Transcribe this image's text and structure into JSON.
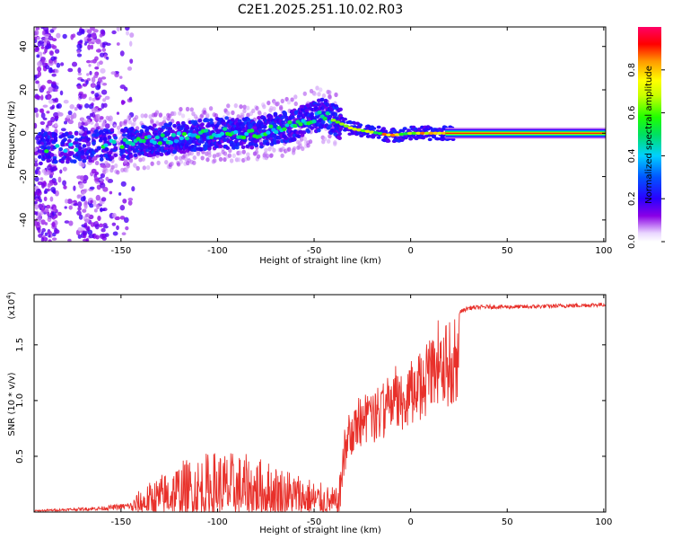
{
  "title": "C2E1.2025.251.10.02.R03",
  "chart_data": [
    {
      "type": "heatmap",
      "name": "spectrogram",
      "xlabel": "Height of straight line (km)",
      "ylabel": "Frequency (Hz)",
      "xlim": [
        -195,
        101
      ],
      "ylim": [
        -50,
        49
      ],
      "xticks": [
        -150,
        -100,
        -50,
        0,
        50,
        100
      ],
      "yticks": [
        -40,
        -20,
        0,
        20,
        40
      ],
      "colorbar": {
        "label": "Normalized spectral amplitude",
        "range": [
          0.0,
          1.0
        ],
        "ticks": [
          0.0,
          0.2,
          0.4,
          0.6,
          0.8
        ]
      },
      "ridge": {
        "x": [
          -190,
          -170,
          -150,
          -120,
          -100,
          -80,
          -60,
          -45,
          -40,
          -30,
          -10,
          0,
          20,
          50,
          100
        ],
        "y": [
          -7,
          -6,
          -5,
          -2,
          0,
          0,
          4,
          9,
          6,
          2,
          -1,
          0,
          0,
          0,
          0
        ]
      }
    },
    {
      "type": "line",
      "name": "snr",
      "xlabel": "Height of straight line (km)",
      "ylabel": "SNR (10 * v/v)",
      "yscale_label": "(x10",
      "yscale_exp": "4",
      "xlim": [
        -195,
        101
      ],
      "ylim": [
        0,
        1.95
      ],
      "xticks": [
        -150,
        -100,
        -50,
        0,
        50,
        100
      ],
      "yticks": [
        0.5,
        1.0,
        1.5
      ],
      "ytick_labels": [
        "0.5",
        "1.0",
        "1.5"
      ],
      "envelope": {
        "x": [
          -195,
          -160,
          -145,
          -140,
          -120,
          -100,
          -80,
          -60,
          -45,
          -37,
          -35,
          -33,
          -30,
          -20,
          -10,
          0,
          10,
          20,
          25,
          30,
          40,
          60,
          80,
          100
        ],
        "y": [
          0.01,
          0.03,
          0.05,
          0.1,
          0.22,
          0.27,
          0.24,
          0.18,
          0.12,
          0.1,
          0.6,
          0.95,
          1.0,
          1.1,
          1.25,
          1.4,
          1.55,
          1.7,
          1.8,
          1.84,
          1.85,
          1.85,
          1.86,
          1.87
        ]
      },
      "color": "#e8302a"
    }
  ]
}
